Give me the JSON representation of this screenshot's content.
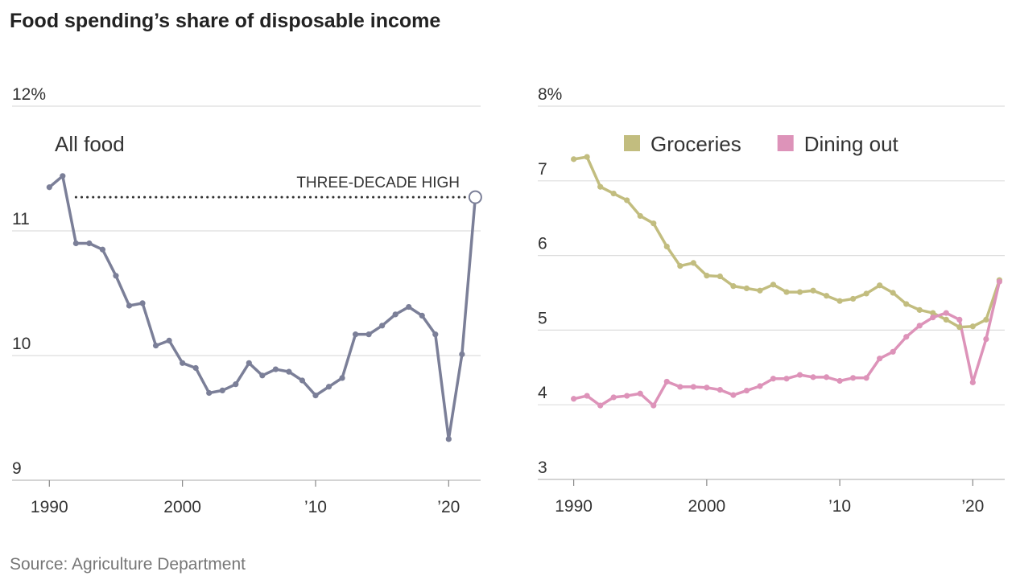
{
  "title": "Food spending’s share of disposable income",
  "source": "Source: Agriculture Department",
  "chart_data": [
    {
      "type": "line",
      "x": [
        1990,
        1991,
        1992,
        1993,
        1994,
        1995,
        1996,
        1997,
        1998,
        1999,
        2000,
        2001,
        2002,
        2003,
        2004,
        2005,
        2006,
        2007,
        2008,
        2009,
        2010,
        2011,
        2012,
        2013,
        2014,
        2015,
        2016,
        2017,
        2018,
        2019,
        2020,
        2021,
        2022
      ],
      "series": [
        {
          "name": "All food",
          "color": "#7b7f98",
          "values": [
            11.35,
            11.44,
            10.9,
            10.9,
            10.85,
            10.64,
            10.4,
            10.42,
            10.08,
            10.12,
            9.94,
            9.9,
            9.7,
            9.72,
            9.77,
            9.94,
            9.84,
            9.89,
            9.87,
            9.8,
            9.68,
            9.75,
            9.82,
            10.17,
            10.17,
            10.24,
            10.33,
            10.39,
            10.32,
            10.17,
            9.33,
            10.01,
            11.27
          ]
        }
      ],
      "annotation": {
        "text": "THREE-DECADE HIGH",
        "value": 11.27,
        "x_start": 1992
      },
      "xlim": [
        1987.2,
        2022.4
      ],
      "xticks": [
        1990,
        2000,
        {
          "value": 2010,
          "label": "’10"
        },
        {
          "value": 2020,
          "label": "’20"
        }
      ],
      "ylim": [
        9,
        12
      ],
      "yticks": [
        9,
        10,
        11,
        {
          "value": 12,
          "label": "12%"
        }
      ],
      "grid": true
    },
    {
      "type": "line",
      "x": [
        1990,
        1991,
        1992,
        1993,
        1994,
        1995,
        1996,
        1997,
        1998,
        1999,
        2000,
        2001,
        2002,
        2003,
        2004,
        2005,
        2006,
        2007,
        2008,
        2009,
        2010,
        2011,
        2012,
        2013,
        2014,
        2015,
        2016,
        2017,
        2018,
        2019,
        2020,
        2021,
        2022
      ],
      "series": [
        {
          "name": "Groceries",
          "color": "#c2bd7f",
          "values": [
            7.29,
            7.32,
            6.92,
            6.83,
            6.74,
            6.53,
            6.43,
            6.12,
            5.86,
            5.9,
            5.73,
            5.72,
            5.59,
            5.56,
            5.53,
            5.61,
            5.51,
            5.51,
            5.53,
            5.46,
            5.39,
            5.42,
            5.49,
            5.6,
            5.5,
            5.35,
            5.27,
            5.23,
            5.14,
            5.04,
            5.05,
            5.14,
            5.67
          ]
        },
        {
          "name": "Dining out",
          "color": "#dd93b9",
          "values": [
            4.08,
            4.12,
            3.99,
            4.1,
            4.12,
            4.15,
            3.99,
            4.31,
            4.24,
            4.24,
            4.23,
            4.2,
            4.13,
            4.19,
            4.25,
            4.35,
            4.35,
            4.4,
            4.37,
            4.37,
            4.32,
            4.36,
            4.36,
            4.62,
            4.71,
            4.91,
            5.06,
            5.17,
            5.23,
            5.14,
            4.3,
            4.88,
            5.65
          ]
        }
      ],
      "xlim": [
        1987.3,
        2022.4
      ],
      "xticks": [
        1990,
        2000,
        {
          "value": 2010,
          "label": "’10"
        },
        {
          "value": 2020,
          "label": "’20"
        }
      ],
      "ylim": [
        3,
        8
      ],
      "yticks": [
        3,
        4,
        5,
        6,
        7,
        {
          "value": 8,
          "label": "8%"
        }
      ],
      "grid": true
    }
  ]
}
